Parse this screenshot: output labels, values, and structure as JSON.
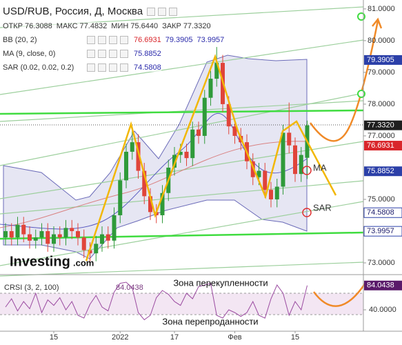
{
  "header": {
    "title": "USD/RUB, Россия, Д, Москва",
    "ohlc": [
      {
        "label": "ОТКР",
        "value": "76.3088"
      },
      {
        "label": "МАКС",
        "value": "77.4832"
      },
      {
        "label": "МИН",
        "value": "75.6440"
      },
      {
        "label": "ЗАКР",
        "value": "77.3320"
      }
    ],
    "indicators": [
      {
        "name": "BB (20, 2)",
        "values": [
          {
            "text": "76.6931",
            "color": "#d9262b"
          },
          {
            "text": "79.3905",
            "color": "#2b2bab"
          },
          {
            "text": "73.9957",
            "color": "#2b2bab"
          }
        ]
      },
      {
        "name": "MA (9, close, 0)",
        "values": [
          {
            "text": "75.8852",
            "color": "#2b2bab"
          }
        ]
      },
      {
        "name": "SAR (0.02, 0.02, 0.2)",
        "values": [
          {
            "text": "74.5808",
            "color": "#2b2bab"
          }
        ]
      }
    ]
  },
  "logo": [
    "Investing",
    ".com"
  ],
  "annotations": {
    "ma": "MA",
    "sar": "SAR",
    "overbought": "Зона перекупленности",
    "oversold": "Зона перепроданности"
  },
  "chart_data": [
    {
      "type": "candlestick",
      "categories": [
        null,
        null,
        null,
        null,
        null,
        null,
        null,
        null,
        "15",
        null,
        null,
        null,
        null,
        null,
        null,
        null,
        null,
        null,
        null,
        "2022",
        null,
        null,
        null,
        null,
        null,
        null,
        null,
        null,
        "17",
        null,
        null,
        null,
        null,
        null,
        null,
        null,
        null,
        null,
        "Фев",
        null,
        null,
        null,
        null,
        null,
        null,
        null,
        null,
        null,
        "15",
        null,
        null
      ],
      "open": [
        73.8,
        74.0,
        73.8,
        74.2,
        73.9,
        73.7,
        73.8,
        74.0,
        73.6,
        73.9,
        73.8,
        74.1,
        74.0,
        73.8,
        73.4,
        73.3,
        73.6,
        73.9,
        73.7,
        74.5,
        75.6,
        76.5,
        76.8,
        75.9,
        75.1,
        74.6,
        74.5,
        75.2,
        76.0,
        76.4,
        76.5,
        76.3,
        77.2,
        77.0,
        78.2,
        78.8,
        79.3,
        78.0,
        77.3,
        77.0,
        76.8,
        76.2,
        75.7,
        75.9,
        75.3,
        75.0,
        75.4,
        77.1,
        76.7,
        75.8,
        76.3088
      ],
      "high": [
        74.25,
        74.25,
        74.45,
        74.45,
        74.15,
        74.05,
        74.25,
        74.25,
        74.15,
        74.15,
        74.35,
        74.35,
        74.25,
        74.05,
        73.65,
        73.85,
        74.15,
        74.15,
        74.75,
        75.85,
        76.75,
        77.3,
        77.05,
        76.15,
        75.35,
        74.85,
        75.45,
        76.25,
        76.65,
        76.75,
        76.75,
        77.45,
        77.45,
        78.45,
        79.05,
        79.8,
        79.55,
        78.25,
        77.55,
        77.25,
        77.05,
        76.45,
        76.15,
        76.15,
        75.55,
        75.65,
        77.35,
        78.05,
        76.95,
        76.65,
        77.4832
      ],
      "low": [
        73.55,
        73.55,
        73.55,
        73.65,
        73.45,
        73.45,
        73.55,
        73.35,
        73.35,
        73.55,
        73.55,
        73.75,
        73.55,
        73.15,
        73.05,
        73.05,
        73.35,
        73.45,
        73.45,
        74.25,
        75.35,
        76.25,
        75.65,
        74.85,
        74.35,
        74.25,
        74.25,
        74.95,
        75.75,
        76.15,
        76.05,
        76.05,
        76.75,
        76.75,
        77.95,
        78.55,
        77.75,
        77.05,
        76.75,
        76.55,
        75.95,
        75.45,
        75.45,
        75.05,
        74.75,
        74.75,
        75.15,
        76.45,
        75.55,
        75.55,
        75.644
      ],
      "close": [
        74.0,
        73.8,
        74.2,
        73.9,
        73.7,
        73.8,
        74.0,
        73.6,
        73.9,
        73.8,
        74.1,
        74.0,
        73.8,
        73.4,
        73.3,
        73.6,
        73.9,
        73.7,
        74.5,
        75.6,
        76.5,
        76.8,
        75.9,
        75.1,
        74.6,
        74.5,
        75.2,
        76.0,
        76.4,
        76.5,
        76.3,
        77.2,
        77.0,
        78.2,
        78.8,
        79.3,
        78.0,
        77.3,
        77.0,
        76.8,
        76.2,
        75.7,
        75.9,
        75.3,
        75.0,
        75.4,
        77.1,
        76.7,
        75.8,
        76.4,
        77.332
      ],
      "up_color": "#2f9a3a",
      "down_color": "#e0443a",
      "ylim": [
        72.63,
        81.28
      ],
      "yticks": [
        {
          "value": 81,
          "label": "81.0000"
        },
        {
          "value": 80,
          "label": "80.0000"
        },
        {
          "value": 79,
          "label": "79.0000"
        },
        {
          "value": 78,
          "label": "78.0000"
        },
        {
          "value": 77,
          "label": "77.0000"
        },
        {
          "value": 75,
          "label": "75.0000"
        },
        {
          "value": 73,
          "label": "73.0000"
        }
      ],
      "price_labels": [
        {
          "value": 79.3905,
          "label": "79.3905",
          "color": "#2b3fa8",
          "text_color": "#ffffff"
        },
        {
          "value": 77.332,
          "label": "77.3320",
          "color": "#1e1e1e",
          "text_color": "#ffffff"
        },
        {
          "value": 76.6931,
          "label": "76.6931",
          "color": "#d9262b",
          "text_color": "#ffffff"
        },
        {
          "value": 75.8852,
          "label": "75.8852",
          "color": "#2b3fa8",
          "text_color": "#ffffff"
        },
        {
          "value": 74.5808,
          "label": "74.5808",
          "color": "#ffffff",
          "text_color": "#1a1a6a"
        },
        {
          "value": 73.9957,
          "label": "73.9957",
          "color": "#ffffff",
          "text_color": "#1a1a6a"
        }
      ]
    },
    {
      "type": "line",
      "title": "CRSI (3, 2, 100)",
      "title_value": "84.0438",
      "color": "#9a4aa0",
      "values": [
        45,
        60,
        38,
        55,
        42,
        70,
        35,
        58,
        48,
        62,
        40,
        55,
        30,
        25,
        50,
        66,
        45,
        38,
        72,
        88,
        90,
        80,
        35,
        22,
        30,
        62,
        75,
        68,
        55,
        48,
        70,
        60,
        82,
        85,
        88,
        30,
        25,
        40,
        35,
        28,
        35,
        55,
        30,
        25,
        60,
        85,
        70,
        30,
        55,
        40,
        84.0438
      ],
      "ylim": [
        0,
        100
      ],
      "yticks": [
        {
          "value": 40,
          "label": "40.0000"
        }
      ],
      "price_label": {
        "value": 84.0438,
        "label": "84.0438",
        "color": "#5a1a6a"
      }
    }
  ]
}
